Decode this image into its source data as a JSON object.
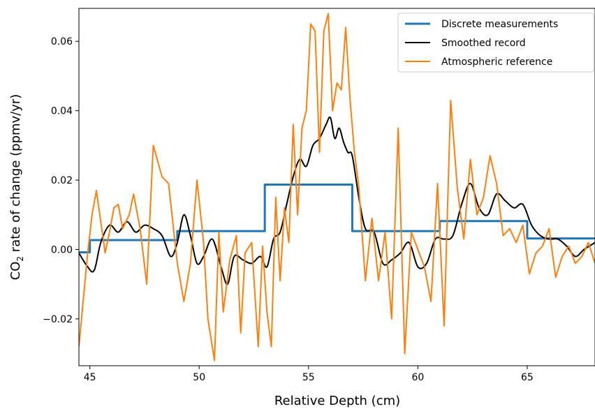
{
  "chart_data": {
    "type": "line",
    "xlabel": "Relative Depth (cm)",
    "ylabel": "CO",
    "ylabel_sub": "2",
    "ylabel_rest": " rate of change (ppmv/yr)",
    "xlim": [
      44.5,
      68.1
    ],
    "ylim": [
      -0.0335,
      0.0695
    ],
    "x_ticks": [
      45,
      50,
      55,
      60,
      65
    ],
    "y_ticks": [
      -0.02,
      0.0,
      0.02,
      0.04,
      0.06
    ],
    "x_tick_labels": [
      "45",
      "50",
      "55",
      "60",
      "65"
    ],
    "y_tick_labels": [
      "−0.02",
      "0.00",
      "0.02",
      "0.04",
      "0.06"
    ],
    "legend_position": "top-right",
    "series": [
      {
        "name": "Discrete measurements",
        "color": "#1f77b4",
        "style": "step",
        "x": [
          44.5,
          45.0,
          45.0,
          49.0,
          49.0,
          53.0,
          53.0,
          57.0,
          57.0,
          61.0,
          61.0,
          65.0,
          65.0,
          68.1
        ],
        "y": [
          -0.0008,
          -0.0008,
          0.0027,
          0.0027,
          0.0053,
          0.0053,
          0.0187,
          0.0187,
          0.0053,
          0.0053,
          0.0082,
          0.0082,
          0.0032,
          0.0032
        ]
      },
      {
        "name": "Smoothed record",
        "color": "#000000",
        "style": "smooth",
        "x": [
          44.5,
          44.9,
          45.2,
          45.5,
          45.9,
          46.3,
          46.7,
          47.1,
          47.5,
          47.9,
          48.3,
          48.7,
          49.0,
          49.3,
          49.6,
          49.9,
          50.2,
          50.6,
          51.0,
          51.3,
          51.6,
          52.0,
          52.4,
          52.8,
          53.1,
          53.4,
          53.7,
          54.0,
          54.3,
          54.6,
          54.9,
          55.2,
          55.5,
          55.8,
          56.0,
          56.2,
          56.4,
          56.6,
          56.8,
          57.0,
          57.3,
          57.6,
          58.0,
          58.4,
          58.8,
          59.2,
          59.6,
          60.0,
          60.4,
          60.8,
          61.2,
          61.6,
          62.0,
          62.4,
          62.8,
          63.2,
          63.6,
          64.0,
          64.4,
          64.8,
          65.2,
          65.6,
          66.0,
          66.4,
          66.8,
          67.2,
          67.6,
          68.1
        ],
        "y": [
          -0.001,
          -0.005,
          -0.006,
          0.002,
          0.007,
          0.005,
          0.008,
          0.005,
          0.007,
          0.006,
          0.004,
          -0.002,
          0.002,
          0.01,
          0.004,
          -0.004,
          -0.002,
          0.003,
          -0.005,
          -0.01,
          -0.002,
          -0.003,
          -0.004,
          -0.002,
          -0.005,
          0.003,
          0.005,
          0.013,
          0.021,
          0.026,
          0.024,
          0.03,
          0.032,
          0.036,
          0.038,
          0.032,
          0.035,
          0.031,
          0.028,
          0.027,
          0.015,
          0.006,
          0.005,
          -0.004,
          -0.003,
          -0.001,
          0.002,
          -0.005,
          -0.004,
          0.003,
          0.003,
          0.004,
          0.013,
          0.019,
          0.012,
          0.01,
          0.016,
          0.014,
          0.012,
          0.013,
          0.007,
          0.004,
          0.003,
          0.003,
          0.001,
          -0.002,
          0.0,
          0.002
        ]
      },
      {
        "name": "Atmospheric reference",
        "color": "#ff7f0e",
        "style": "linear",
        "x": [
          44.5,
          44.9,
          45.1,
          45.3,
          45.5,
          45.7,
          45.9,
          46.1,
          46.3,
          46.5,
          46.8,
          47.0,
          47.3,
          47.6,
          47.9,
          48.3,
          48.6,
          49.0,
          49.3,
          49.6,
          49.9,
          50.2,
          50.4,
          50.7,
          50.9,
          51.1,
          51.4,
          51.7,
          51.9,
          52.1,
          52.4,
          52.7,
          52.9,
          53.1,
          53.3,
          53.5,
          53.7,
          53.9,
          54.1,
          54.3,
          54.5,
          54.7,
          54.9,
          55.1,
          55.3,
          55.5,
          55.7,
          55.9,
          56.1,
          56.3,
          56.5,
          56.7,
          56.9,
          57.1,
          57.3,
          57.6,
          57.9,
          58.2,
          58.5,
          58.8,
          59.1,
          59.4,
          59.7,
          60.0,
          60.3,
          60.6,
          60.9,
          61.2,
          61.5,
          61.8,
          62.1,
          62.4,
          62.7,
          63.0,
          63.3,
          63.6,
          63.9,
          64.2,
          64.5,
          64.8,
          65.1,
          65.4,
          65.7,
          66.0,
          66.3,
          66.6,
          66.9,
          67.2,
          67.5,
          67.8,
          68.1
        ],
        "y": [
          -0.028,
          -0.001,
          0.01,
          0.017,
          0.008,
          -0.001,
          0.005,
          0.012,
          0.013,
          0.006,
          0.01,
          0.016,
          0.006,
          -0.01,
          0.03,
          0.021,
          0.019,
          -0.004,
          -0.015,
          -0.004,
          0.02,
          0.002,
          -0.02,
          -0.032,
          0.005,
          -0.018,
          -0.003,
          0.004,
          -0.024,
          -0.001,
          0.002,
          -0.028,
          0.001,
          -0.018,
          -0.028,
          0.015,
          -0.009,
          0.012,
          0.002,
          0.036,
          0.01,
          0.035,
          0.04,
          0.065,
          0.063,
          0.028,
          0.063,
          0.068,
          0.04,
          0.048,
          0.046,
          0.064,
          0.043,
          0.028,
          0.018,
          -0.009,
          0.009,
          -0.009,
          0.005,
          -0.02,
          0.035,
          -0.03,
          0.005,
          0.0,
          -0.005,
          -0.015,
          0.019,
          -0.022,
          0.043,
          0.018,
          0.003,
          0.026,
          0.01,
          0.015,
          0.027,
          0.019,
          0.004,
          0.006,
          0.002,
          0.007,
          -0.007,
          -0.001,
          0.001,
          0.006,
          -0.008,
          -0.002,
          0.001,
          -0.004,
          -0.002,
          0.002,
          -0.004
        ]
      }
    ]
  }
}
